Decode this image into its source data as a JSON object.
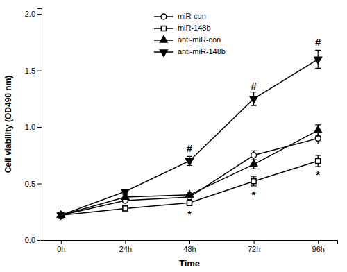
{
  "chart_data": {
    "type": "line",
    "xlabel": "Time",
    "ylabel": "Cell viability (OD490 nm)",
    "categories": [
      "0h",
      "24h",
      "48h",
      "72h",
      "96h"
    ],
    "series": [
      {
        "name": "miR-con",
        "values": [
          0.22,
          0.35,
          0.38,
          0.75,
          0.9
        ],
        "errors": [
          0.01,
          0.02,
          0.025,
          0.04,
          0.05
        ],
        "marker": "circle-open"
      },
      {
        "name": "miR-148b",
        "values": [
          0.22,
          0.28,
          0.33,
          0.52,
          0.7
        ],
        "errors": [
          0.01,
          0.02,
          0.025,
          0.04,
          0.05
        ],
        "marker": "square-open"
      },
      {
        "name": "anti-miR-con",
        "values": [
          0.22,
          0.38,
          0.4,
          0.67,
          0.97
        ],
        "errors": [
          0.01,
          0.02,
          0.025,
          0.04,
          0.05
        ],
        "marker": "triangle-up"
      },
      {
        "name": "anti-miR-148b",
        "values": [
          0.22,
          0.43,
          0.7,
          1.25,
          1.6
        ],
        "errors": [
          0.01,
          0.02,
          0.04,
          0.06,
          0.08
        ],
        "marker": "triangle-down"
      }
    ],
    "color": "black",
    "ylim": [
      0.0,
      2.05
    ],
    "yticks": [
      {
        "value": 0,
        "label": "0.0"
      },
      0.5,
      {
        "value": 1,
        "label": "1.0"
      },
      1.5,
      {
        "value": 2,
        "label": "2.0"
      }
    ],
    "annotations": [
      {
        "text": "#",
        "x": "48h",
        "y": 0.78
      },
      {
        "text": "#",
        "x": "72h",
        "y": 1.33
      },
      {
        "text": "#",
        "x": "96h",
        "y": 1.72
      },
      {
        "text": "*",
        "x": "48h",
        "y": 0.265
      },
      {
        "text": "*",
        "x": "72h",
        "y": 0.435
      },
      {
        "text": "*",
        "x": "96h",
        "y": 0.615
      }
    ],
    "legend": "upper center",
    "grid": false
  }
}
